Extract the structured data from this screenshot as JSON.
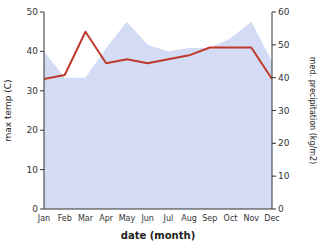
{
  "chart_data": {
    "type": "line",
    "xlabel": "date (month)",
    "ylabel": "max temp (C)",
    "y2label": "med. precipitation (kg/m2)",
    "categories": [
      "Jan",
      "Feb",
      "Mar",
      "Apr",
      "May",
      "Jun",
      "Jul",
      "Aug",
      "Sep",
      "Oct",
      "Nov",
      "Dec"
    ],
    "series": [
      {
        "type": "area",
        "axis": "y2",
        "color": "#b8c4ef",
        "values": [
          48,
          40,
          40,
          49,
          57,
          50,
          48,
          49,
          49,
          52,
          57,
          45
        ]
      },
      {
        "type": "line",
        "color": "#c0392b",
        "values": [
          33,
          34,
          45,
          37,
          38,
          37,
          38,
          39,
          41,
          41,
          41,
          33
        ]
      }
    ],
    "ylim": [
      0,
      50
    ],
    "yticks": [
      0,
      10,
      20,
      30,
      40,
      50
    ],
    "y2lim": [
      0,
      60
    ],
    "y2ticks": [
      0,
      10,
      20,
      30,
      40,
      50,
      60
    ],
    "grid": false
  }
}
